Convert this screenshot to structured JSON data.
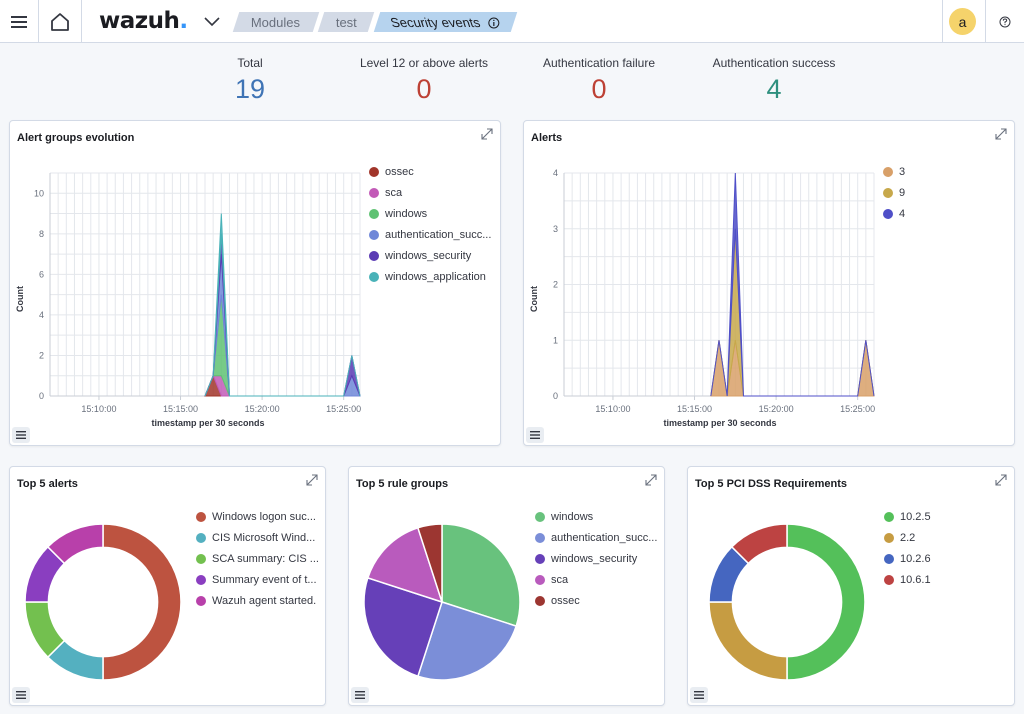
{
  "header": {
    "logo_text": "wazuh",
    "logo_dot": ".",
    "breadcrumbs": [
      "Modules",
      "test",
      "Security events"
    ],
    "info_icon": "info-icon",
    "avatar_letter": "a",
    "help_icon": "help-icon"
  },
  "stats": [
    {
      "label": "Total",
      "value": "19",
      "color": "#3f74b5"
    },
    {
      "label": "Level 12 or above alerts",
      "value": "0",
      "color": "#bd4135"
    },
    {
      "label": "Authentication failure",
      "value": "0",
      "color": "#bd4135"
    },
    {
      "label": "Authentication success",
      "value": "4",
      "color": "#2e8f7e"
    }
  ],
  "colors": {
    "ossec": "#a1352a",
    "sca": "#c25ab7",
    "windows": "#5fc273",
    "authentication_success": "#6f87d8",
    "windows_security": "#5b3bb4",
    "windows_application": "#49b2b8",
    "level3": "#d8a069",
    "level9": "#c7a84b",
    "level4": "#4f4fc8"
  },
  "chart_data": [
    {
      "type": "area",
      "title": "Alert groups evolution",
      "xlabel": "timestamp per 30 seconds",
      "ylabel": "Count",
      "ylim": [
        0,
        11
      ],
      "y_ticks": [
        "0",
        "2",
        "4",
        "6",
        "8",
        "10"
      ],
      "x_ticks": [
        "15:10:00",
        "15:15:00",
        "15:20:00",
        "15:25:00"
      ],
      "legend_position": "right",
      "series": [
        {
          "name": "ossec",
          "values": {
            "15:17:00": 1,
            "15:17:30": 0
          }
        },
        {
          "name": "sca",
          "values": {
            "15:17:00": 0,
            "15:17:30": 1
          }
        },
        {
          "name": "windows",
          "values": {
            "15:17:30": 4
          }
        },
        {
          "name": "authentication_success",
          "values": {
            "15:17:30": 2,
            "15:25:30": 1
          }
        },
        {
          "name": "windows_security",
          "values": {
            "15:17:30": 1,
            "15:25:30": 1
          }
        },
        {
          "name": "windows_application",
          "values": {
            "15:17:30": 1
          }
        }
      ],
      "legend_labels": [
        "ossec",
        "sca",
        "windows",
        "authentication_succ...",
        "windows_security",
        "windows_application"
      ]
    },
    {
      "type": "area",
      "title": "Alerts",
      "xlabel": "timestamp per 30 seconds",
      "ylabel": "Count",
      "ylim": [
        0,
        4
      ],
      "y_ticks": [
        "0",
        "1",
        "2",
        "3",
        "4"
      ],
      "x_ticks": [
        "15:10:00",
        "15:15:00",
        "15:20:00",
        "15:25:00"
      ],
      "legend_position": "right",
      "series": [
        {
          "name": "3",
          "values": {
            "15:16:30": 1,
            "15:17:30": 1,
            "15:25:30": 1
          }
        },
        {
          "name": "9",
          "values": {
            "15:17:30": 2
          }
        },
        {
          "name": "4",
          "values": {
            "15:17:30": 1
          }
        }
      ],
      "legend_labels": [
        "3",
        "9",
        "4"
      ]
    },
    {
      "type": "pie",
      "title": "Top 5 alerts",
      "legend_position": "right",
      "labels": [
        "Windows logon suc...",
        "CIS Microsoft Wind...",
        "SCA summary: CIS ...",
        "Summary event of t...",
        "Wazuh agent started."
      ],
      "values": [
        8,
        2,
        2,
        2,
        2
      ],
      "colors": [
        "#bd5340",
        "#54b0c0",
        "#73c04f",
        "#8a3ec0",
        "#b840aa"
      ]
    },
    {
      "type": "pie",
      "title": "Top 5 rule groups",
      "legend_position": "right",
      "labels": [
        "windows",
        "authentication_succ...",
        "windows_security",
        "sca",
        "ossec"
      ],
      "values": [
        6,
        5,
        5,
        3,
        1
      ],
      "colors": [
        "#68c27d",
        "#7b8ed8",
        "#6640b8",
        "#b95bbd",
        "#9c3631"
      ]
    },
    {
      "type": "pie",
      "title": "Top 5 PCI DSS Requirements",
      "legend_position": "right",
      "labels": [
        "10.2.5",
        "2.2",
        "10.2.6",
        "10.6.1"
      ],
      "values": [
        8,
        4,
        2,
        2
      ],
      "colors": [
        "#54c05a",
        "#c69c42",
        "#4566c0",
        "#bd4342"
      ]
    }
  ]
}
